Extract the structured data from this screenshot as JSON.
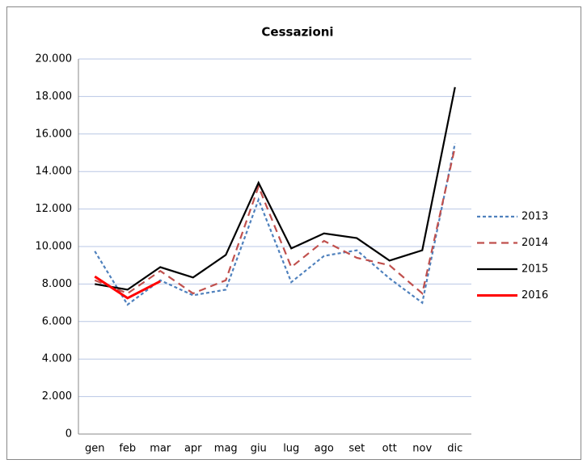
{
  "chart_data": {
    "type": "line",
    "title": "Cessazioni",
    "categories": [
      "gen",
      "feb",
      "mar",
      "apr",
      "mag",
      "giu",
      "lug",
      "ago",
      "set",
      "ott",
      "nov",
      "dic"
    ],
    "series": [
      {
        "name": "2013",
        "color": "#4f81bd",
        "dash": "dotted",
        "values": [
          9750,
          6900,
          8200,
          7400,
          7700,
          12500,
          8100,
          9500,
          9800,
          8300,
          7000,
          15500
        ]
      },
      {
        "name": "2014",
        "color": "#c0504d",
        "dash": "dashed",
        "values": [
          8200,
          7500,
          8700,
          7500,
          8200,
          13200,
          8900,
          10300,
          9400,
          9000,
          7500,
          15300
        ]
      },
      {
        "name": "2015",
        "color": "#000000",
        "dash": "solid",
        "values": [
          8000,
          7700,
          8900,
          8350,
          9550,
          13400,
          9900,
          10700,
          10450,
          9250,
          9800,
          18500
        ]
      },
      {
        "name": "2016",
        "color": "#ff0000",
        "dash": "solid",
        "width": 3,
        "values": [
          8400,
          7250,
          8150,
          null,
          null,
          null,
          null,
          null,
          null,
          null,
          null,
          null
        ]
      }
    ],
    "ylim": [
      0,
      20000
    ],
    "yticks": [
      0,
      {
        "value": 2000,
        "label": "2.000"
      },
      {
        "value": 4000,
        "label": "4.000"
      },
      {
        "value": 6000,
        "label": "6.000"
      },
      {
        "value": 8000,
        "label": "8.000"
      },
      {
        "value": 10000,
        "label": "10.000"
      },
      {
        "value": 12000,
        "label": "12.000"
      },
      {
        "value": 14000,
        "label": "14.000"
      },
      {
        "value": 16000,
        "label": "16.000"
      },
      {
        "value": 18000,
        "label": "18.000"
      },
      {
        "value": 20000,
        "label": "20.000"
      }
    ],
    "grid": true,
    "legend": "right"
  }
}
